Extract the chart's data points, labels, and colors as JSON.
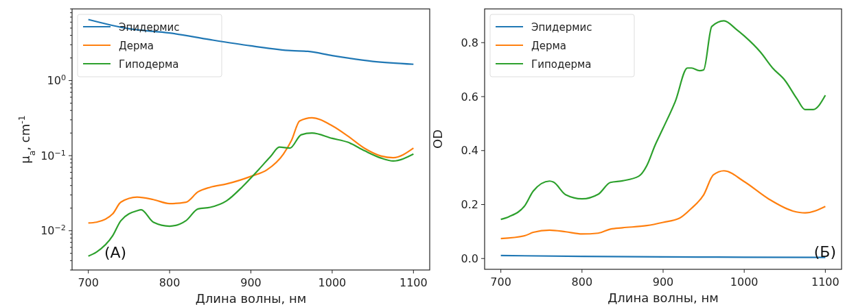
{
  "chart_data": [
    {
      "type": "line",
      "xlabel": "Длина волны, нм",
      "ylabel": "μ$_{a}$, cm$^{-1}$",
      "log": "y",
      "legend": "top left",
      "annotations": [
        "(A)"
      ],
      "xlim": [
        680,
        1120
      ],
      "xticks": [
        700,
        800,
        900,
        1000,
        1100
      ],
      "ylim": [
        0.003,
        9
      ],
      "yticks": [
        {
          "value": 0.01,
          "label": "10$^{−2}$"
        },
        {
          "value": 0.1,
          "label": "10$^{−1}$"
        },
        {
          "value": 1,
          "label": "10$^{0}$"
        },
        {
          "value": 0.003,
          "label": null
        },
        {
          "value": 0.004,
          "label": null
        },
        {
          "value": 0.005,
          "label": null
        },
        {
          "value": 0.006,
          "label": null
        },
        {
          "value": 0.007,
          "label": null
        },
        {
          "value": 0.008,
          "label": null
        },
        {
          "value": 0.009,
          "label": null
        },
        {
          "value": 0.02,
          "label": null
        },
        {
          "value": 0.03,
          "label": null
        },
        {
          "value": 0.04,
          "label": null
        },
        {
          "value": 0.05,
          "label": null
        },
        {
          "value": 0.06,
          "label": null
        },
        {
          "value": 0.07,
          "label": null
        },
        {
          "value": 0.08,
          "label": null
        },
        {
          "value": 0.09,
          "label": null
        },
        {
          "value": 0.2,
          "label": null
        },
        {
          "value": 0.3,
          "label": null
        },
        {
          "value": 0.4,
          "label": null
        },
        {
          "value": 0.5,
          "label": null
        },
        {
          "value": 0.6,
          "label": null
        },
        {
          "value": 0.7,
          "label": null
        },
        {
          "value": 0.8,
          "label": null
        },
        {
          "value": 0.9,
          "label": null
        },
        {
          "value": 2,
          "label": null
        },
        {
          "value": 3,
          "label": null
        },
        {
          "value": 4,
          "label": null
        },
        {
          "value": 5,
          "label": null
        },
        {
          "value": 6,
          "label": null
        },
        {
          "value": 7,
          "label": null
        },
        {
          "value": 8,
          "label": null
        },
        {
          "value": 9,
          "label": null
        }
      ],
      "series": [
        {
          "name": "Эпидермис",
          "color": "#1f77b4",
          "x": [
            700,
            750,
            800,
            850,
            900,
            950,
            970,
            1000,
            1050,
            1100
          ],
          "values": [
            6.5,
            4.9,
            4.3,
            3.5,
            2.9,
            2.5,
            2.45,
            2.15,
            1.8,
            1.65
          ]
        },
        {
          "name": "Дерма",
          "color": "#ff7f0e",
          "x": [
            700,
            710,
            730,
            740,
            760,
            780,
            800,
            820,
            835,
            850,
            870,
            900,
            920,
            940,
            950,
            960,
            975,
            1000,
            1020,
            1040,
            1060,
            1075,
            1100
          ],
          "values": [
            0.0127,
            0.013,
            0.0168,
            0.024,
            0.028,
            0.026,
            0.023,
            0.024,
            0.033,
            0.038,
            0.042,
            0.053,
            0.065,
            0.105,
            0.16,
            0.29,
            0.32,
            0.25,
            0.18,
            0.125,
            0.099,
            0.094,
            0.126
          ]
        },
        {
          "name": "Гиподерма",
          "color": "#2ca02c",
          "x": [
            700,
            710,
            730,
            740,
            760,
            765,
            780,
            800,
            820,
            835,
            850,
            870,
            890,
            910,
            925,
            935,
            948,
            962,
            975,
            1000,
            1020,
            1040,
            1060,
            1075,
            1100
          ],
          "values": [
            0.0046,
            0.0052,
            0.0086,
            0.0136,
            0.0185,
            0.019,
            0.013,
            0.0115,
            0.0136,
            0.0195,
            0.0205,
            0.025,
            0.039,
            0.066,
            0.1,
            0.13,
            0.126,
            0.19,
            0.2,
            0.17,
            0.15,
            0.116,
            0.093,
            0.085,
            0.105
          ]
        }
      ]
    },
    {
      "type": "line",
      "xlabel": "Длина волны, нм",
      "ylabel": "OD",
      "legend": "top left",
      "annotations": [
        "(Б)"
      ],
      "xlim": [
        680,
        1120
      ],
      "xticks": [
        700,
        800,
        900,
        1000,
        1100
      ],
      "ylim": [
        -0.04,
        0.925
      ],
      "yticks": [
        {
          "value": 0,
          "label": "0.0"
        },
        0.2,
        0.4,
        0.6,
        0.8
      ],
      "series": [
        {
          "name": "Эпидермис",
          "color": "#1f77b4",
          "x": [
            700,
            800,
            900,
            1000,
            1100
          ],
          "values": [
            0.011,
            0.008,
            0.006,
            0.005,
            0.004
          ]
        },
        {
          "name": "Дерма",
          "color": "#ff7f0e",
          "x": [
            700,
            730,
            740,
            760,
            780,
            800,
            820,
            835,
            850,
            880,
            900,
            920,
            935,
            950,
            962,
            975,
            1000,
            1030,
            1060,
            1075,
            1100
          ],
          "values": [
            0.074,
            0.085,
            0.097,
            0.105,
            0.099,
            0.091,
            0.094,
            0.109,
            0.114,
            0.122,
            0.134,
            0.149,
            0.186,
            0.236,
            0.31,
            0.325,
            0.285,
            0.221,
            0.176,
            0.169,
            0.193
          ]
        },
        {
          "name": "Гиподерма",
          "color": "#2ca02c",
          "x": [
            700,
            710,
            730,
            740,
            760,
            765,
            780,
            800,
            820,
            835,
            850,
            870,
            880,
            890,
            900,
            915,
            930,
            935,
            945,
            950,
            960,
            975,
            990,
            1000,
            1020,
            1035,
            1050,
            1065,
            1075,
            1085,
            1100
          ],
          "values": [
            0.145,
            0.155,
            0.198,
            0.25,
            0.287,
            0.283,
            0.236,
            0.221,
            0.238,
            0.282,
            0.288,
            0.305,
            0.345,
            0.419,
            0.483,
            0.582,
            0.706,
            0.706,
            0.696,
            0.699,
            0.86,
            0.881,
            0.85,
            0.825,
            0.765,
            0.706,
            0.661,
            0.592,
            0.552,
            0.552,
            0.605
          ]
        }
      ]
    }
  ]
}
